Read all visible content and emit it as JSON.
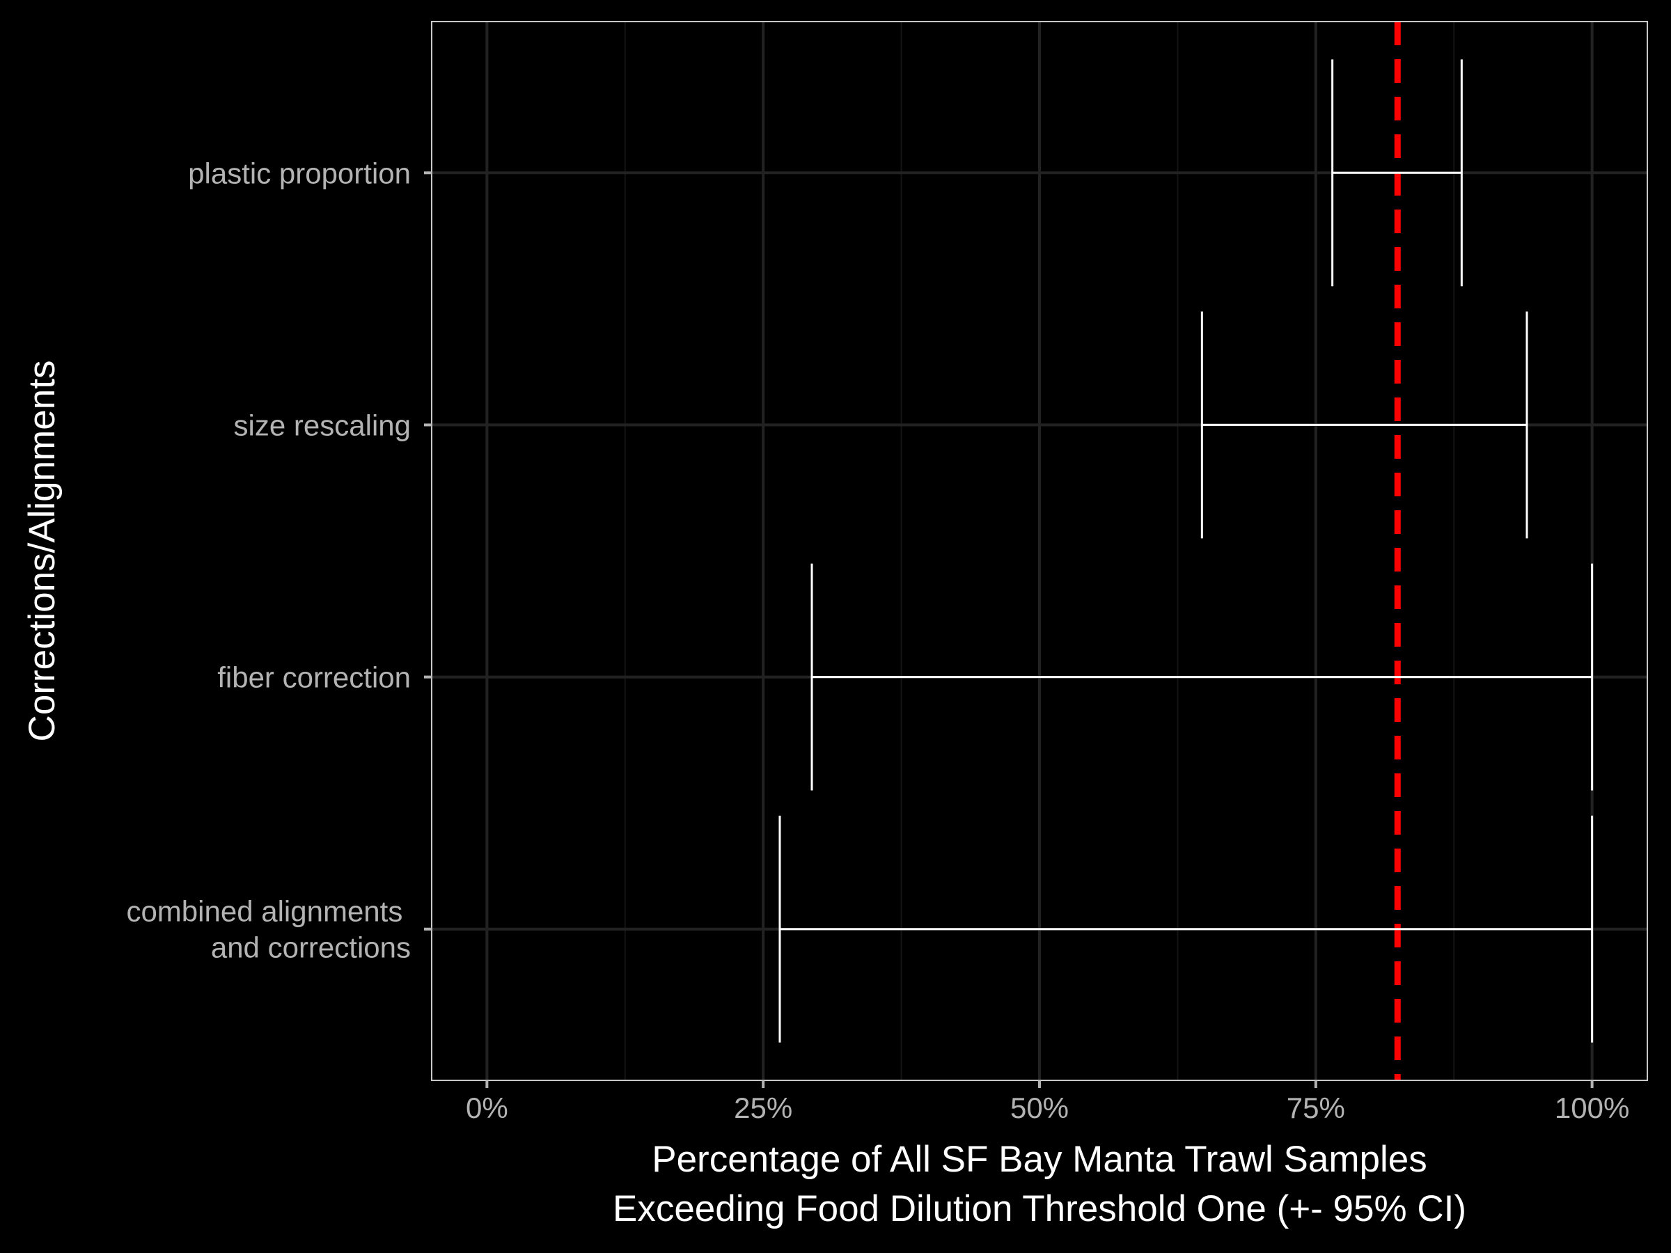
{
  "chart_data": {
    "type": "errorbar",
    "title": "",
    "xlabel_lines": [
      "Percentage of All SF Bay Manta Trawl Samples",
      "Exceeding Food Dilution Threshold One (+- 95% CI)"
    ],
    "ylabel": "Corrections/Alignments",
    "xlim": [
      -0.05,
      1.05
    ],
    "x_ticks": [
      {
        "value": 0,
        "label": "0%"
      },
      {
        "value": 0.25,
        "label": "25%"
      },
      {
        "value": 0.5,
        "label": "50%"
      },
      {
        "value": 0.75,
        "label": "75%"
      },
      {
        "value": 1,
        "label": "100%"
      }
    ],
    "x_minor_ticks": [
      0.125,
      0.375,
      0.625,
      0.875
    ],
    "categories": [
      {
        "label_lines": [
          "plastic proportion"
        ],
        "low": 0.765,
        "high": 0.882
      },
      {
        "label_lines": [
          "size rescaling"
        ],
        "low": 0.647,
        "high": 0.941
      },
      {
        "label_lines": [
          "fiber correction"
        ],
        "low": 0.294,
        "high": 1.0
      },
      {
        "label_lines": [
          "combined alignments ",
          "and corrections"
        ],
        "low": 0.265,
        "high": 1.0
      }
    ],
    "reference_line": {
      "value": 0.824,
      "style": "dashed",
      "color": "#ff0000"
    },
    "grid": true,
    "colors": {
      "background": "#000000",
      "panel": "#000000",
      "panel_border": "#c8c8c8",
      "grid_major": "#222222",
      "grid_minor": "#141414",
      "errorbar": "#ffffff",
      "tick_text": "#b3b3b3",
      "title_text": "#ffffff"
    }
  }
}
